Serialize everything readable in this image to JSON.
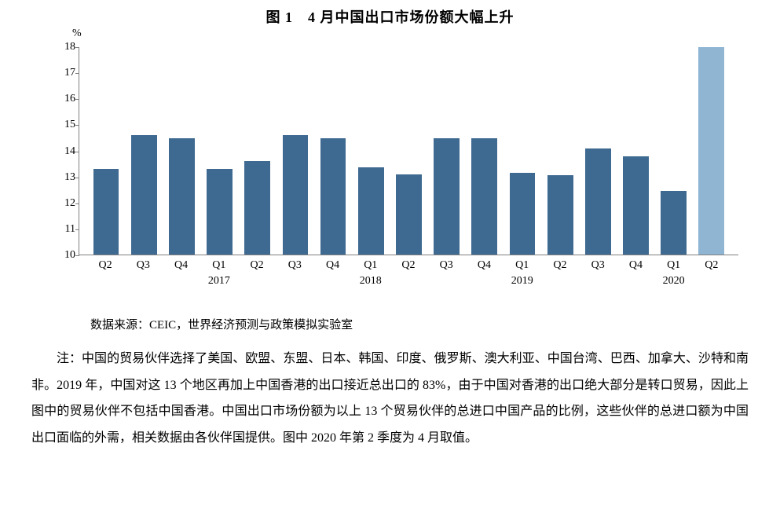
{
  "title": "图 1　4 月中国出口市场份额大幅上升",
  "chart": {
    "type": "bar",
    "y_unit": "%",
    "ylim": [
      10,
      18
    ],
    "ytick_step": 1,
    "yticks": [
      10,
      11,
      12,
      13,
      14,
      15,
      16,
      17,
      18
    ],
    "bar_default_color": "#3e6991",
    "bar_highlight_color": "#8fb5d3",
    "axis_color": "#808080",
    "background_color": "#ffffff",
    "bar_width_ratio": 0.68,
    "title_fontsize": 18,
    "axis_fontsize": 14,
    "categories": [
      "Q2",
      "Q3",
      "Q4",
      "Q1",
      "Q2",
      "Q3",
      "Q4",
      "Q1",
      "Q2",
      "Q3",
      "Q4",
      "Q1",
      "Q2",
      "Q3",
      "Q4",
      "Q1",
      "Q2"
    ],
    "year_markers": [
      {
        "label": "2017",
        "at_index": 3
      },
      {
        "label": "2018",
        "at_index": 7
      },
      {
        "label": "2019",
        "at_index": 11
      },
      {
        "label": "2020",
        "at_index": 15
      }
    ],
    "values": [
      13.3,
      14.6,
      14.5,
      13.3,
      13.6,
      14.6,
      14.5,
      13.35,
      13.1,
      14.5,
      14.5,
      13.15,
      13.05,
      14.1,
      13.8,
      12.45,
      18.0
    ],
    "highlight_index": 16
  },
  "source_label": "数据来源：CEIC，世界经济预测与政策模拟实验室",
  "note_lines": [
    "注：中国的贸易伙伴选择了美国、欧盟、东盟、日本、韩国、印度、俄罗斯、澳大利亚、中国台湾、巴西、加拿大、沙特和南非。2019 年，中国对这 13 个地区再加上中国香港的出口接近总出口的 83%，由于中国对香港的出口绝大部分是转口贸易，因此上图中的贸易伙伴不包括中国香港。中国出口市场份额为以上 13 个贸易伙伴的总进口中国产品的比例，这些伙伴的总进口额为中国出口面临的外需，相关数据由各伙伴国提供。图中 2020 年第 2 季度为 4 月取值。"
  ]
}
